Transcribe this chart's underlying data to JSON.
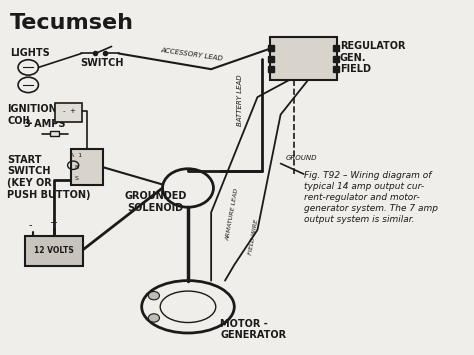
{
  "title": "Tecumseh",
  "background_color": "#f0eeea",
  "caption_lines": [
    "Fig. T92 – Wiring diagram of",
    "typical 14 amp output cur-",
    "rent-regulator and motor-",
    "generator system. The 7 amp",
    "output system is similar."
  ],
  "labels": {
    "lights": "LIGHTS",
    "switch": "SWITCH",
    "ignition_coil": "IGNITION\nCOIL",
    "three_amps": "3 AMPS",
    "start_switch": "START\nSWITCH\n(KEY OR\nPUSH BUTTON)",
    "grounded_solenoid": "GROUNDED\nSOLENOID",
    "motor_generator": "MOTOR -\nGENERATOR",
    "regulator": "REGULATOR\nGEN.\nFIELD",
    "battery_lead": "BATTERY LEAD",
    "ground": "GROUND",
    "accessory_lead": "ACCESSORY LEAD",
    "armature_lead": "ARMATURE LEAD",
    "field_wire": "FIELD WIRE",
    "battery_volts": "12 VOLTS"
  },
  "line_color": "#1a1a1a",
  "text_color": "#1a1a1a",
  "title_fontsize": 16,
  "label_fontsize": 7,
  "caption_fontsize": 6.5
}
